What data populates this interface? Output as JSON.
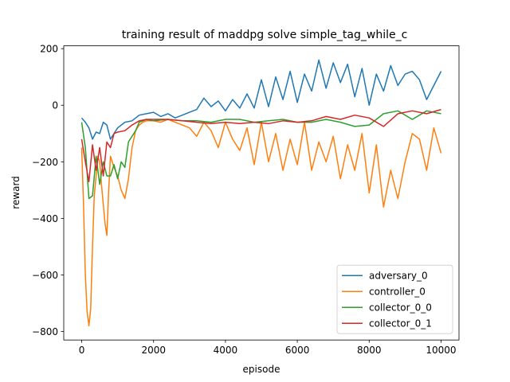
{
  "chart_data": {
    "type": "line",
    "title": "training result of maddpg solve simple_tag_while_c",
    "xlabel": "episode",
    "ylabel": "reward",
    "xlim": [
      -500,
      10500
    ],
    "ylim": [
      -830,
      210
    ],
    "xticks": [
      0,
      2000,
      4000,
      6000,
      8000,
      10000
    ],
    "xtick_labels": [
      "0",
      "2000",
      "4000",
      "6000",
      "8000",
      "10000"
    ],
    "yticks": [
      -800,
      -600,
      -400,
      -200,
      0,
      200
    ],
    "ytick_labels": [
      "−800",
      "−600",
      "−400",
      "−200",
      "0",
      "200"
    ],
    "grid": false,
    "legend_position": "lower-right",
    "series": [
      {
        "name": "adversary_0",
        "color": "#1f77b4",
        "x": [
          0,
          100,
          200,
          300,
          400,
          500,
          600,
          700,
          800,
          1000,
          1200,
          1400,
          1600,
          1800,
          2000,
          2200,
          2400,
          2600,
          2800,
          3000,
          3200,
          3400,
          3600,
          3800,
          4000,
          4200,
          4400,
          4600,
          4800,
          5000,
          5200,
          5400,
          5600,
          5800,
          6000,
          6200,
          6400,
          6600,
          6800,
          7000,
          7200,
          7400,
          7600,
          7800,
          8000,
          8200,
          8400,
          8600,
          8800,
          9000,
          9200,
          9400,
          9600,
          9800,
          10000
        ],
        "y": [
          -45,
          -60,
          -80,
          -120,
          -95,
          -100,
          -60,
          -70,
          -120,
          -80,
          -60,
          -55,
          -35,
          -30,
          -25,
          -40,
          -30,
          -45,
          -35,
          -25,
          -15,
          25,
          -5,
          15,
          -20,
          20,
          -10,
          40,
          -10,
          90,
          -5,
          100,
          20,
          120,
          10,
          110,
          50,
          160,
          60,
          150,
          80,
          145,
          30,
          130,
          0,
          110,
          50,
          140,
          70,
          110,
          120,
          90,
          20,
          70,
          120
        ]
      },
      {
        "name": "controller_0",
        "color": "#ff7f0e",
        "x": [
          0,
          50,
          100,
          150,
          200,
          250,
          300,
          350,
          400,
          450,
          500,
          550,
          600,
          650,
          700,
          750,
          800,
          900,
          1000,
          1100,
          1200,
          1300,
          1400,
          1500,
          1600,
          1700,
          1800,
          2000,
          2200,
          2400,
          2600,
          2800,
          3000,
          3200,
          3400,
          3600,
          3800,
          4000,
          4200,
          4400,
          4600,
          4800,
          5000,
          5200,
          5400,
          5600,
          5800,
          6000,
          6200,
          6400,
          6600,
          6800,
          7000,
          7200,
          7400,
          7600,
          7800,
          8000,
          8200,
          8400,
          8600,
          8800,
          9000,
          9200,
          9400,
          9600,
          9800,
          10000
        ],
        "y": [
          -150,
          -350,
          -600,
          -730,
          -780,
          -720,
          -500,
          -320,
          -250,
          -180,
          -200,
          -280,
          -350,
          -420,
          -460,
          -300,
          -180,
          -220,
          -250,
          -300,
          -330,
          -260,
          -150,
          -90,
          -70,
          -60,
          -55,
          -55,
          -60,
          -50,
          -60,
          -70,
          -80,
          -110,
          -60,
          -90,
          -150,
          -60,
          -120,
          -160,
          -80,
          -210,
          -60,
          -200,
          -100,
          -230,
          -120,
          -210,
          -60,
          -230,
          -130,
          -200,
          -110,
          -260,
          -140,
          -230,
          -100,
          -310,
          -140,
          -360,
          -230,
          -330,
          -200,
          -100,
          -120,
          -230,
          -80,
          -170
        ]
      },
      {
        "name": "collector_0_0",
        "color": "#2ca02c",
        "x": [
          0,
          100,
          200,
          300,
          400,
          500,
          600,
          700,
          800,
          900,
          1000,
          1100,
          1200,
          1300,
          1400,
          1500,
          1600,
          1800,
          2000,
          2400,
          2800,
          3200,
          3600,
          4000,
          4400,
          4800,
          5200,
          5600,
          6000,
          6400,
          6800,
          7200,
          7600,
          8000,
          8400,
          8800,
          9200,
          9600,
          10000
        ],
        "y": [
          -60,
          -150,
          -330,
          -320,
          -180,
          -280,
          -200,
          -250,
          -250,
          -210,
          -260,
          -200,
          -220,
          -130,
          -110,
          -90,
          -60,
          -50,
          -55,
          -50,
          -55,
          -55,
          -60,
          -50,
          -50,
          -60,
          -55,
          -50,
          -60,
          -60,
          -50,
          -60,
          -75,
          -70,
          -30,
          -20,
          -50,
          -20,
          -30
        ]
      },
      {
        "name": "collector_0_1",
        "color": "#d62728",
        "x": [
          0,
          100,
          200,
          300,
          400,
          500,
          600,
          700,
          800,
          900,
          1000,
          1200,
          1400,
          1600,
          1800,
          2000,
          2400,
          2800,
          3200,
          3600,
          4000,
          4400,
          4800,
          5200,
          5600,
          6000,
          6400,
          6800,
          7200,
          7600,
          8000,
          8400,
          8800,
          9200,
          9600,
          10000
        ],
        "y": [
          -120,
          -200,
          -270,
          -140,
          -230,
          -150,
          -250,
          -130,
          -150,
          -100,
          -95,
          -90,
          -70,
          -55,
          -50,
          -50,
          -50,
          -55,
          -60,
          -65,
          -60,
          -65,
          -60,
          -65,
          -55,
          -60,
          -55,
          -40,
          -50,
          -35,
          -45,
          -75,
          -30,
          -20,
          -30,
          -15
        ]
      }
    ]
  }
}
